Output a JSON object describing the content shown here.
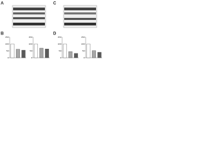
{
  "panels": [
    "A",
    "B",
    "C",
    "D"
  ],
  "chart_data": [
    {
      "type": "bar",
      "categories": [
        null,
        null,
        null
      ],
      "values": [
        100,
        62,
        55
      ],
      "colors": [
        "#ffffff",
        "#a6a6a6",
        "#595959"
      ],
      "ylim": [
        0,
        150
      ],
      "yticks": [
        0,
        50,
        100,
        150
      ]
    },
    {
      "type": "bar",
      "categories": [
        null,
        null,
        null
      ],
      "values": [
        100,
        70,
        64
      ],
      "colors": [
        "#ffffff",
        "#a6a6a6",
        "#595959"
      ],
      "ylim": [
        0,
        150
      ],
      "yticks": [
        0,
        50,
        100,
        150
      ]
    },
    {
      "type": "bar",
      "categories": [
        null,
        null,
        null
      ],
      "values": [
        100,
        45,
        32
      ],
      "colors": [
        "#ffffff",
        "#a6a6a6",
        "#595959"
      ],
      "ylim": [
        0,
        150
      ],
      "yticks": [
        0,
        50,
        100,
        150
      ]
    },
    {
      "type": "bar",
      "categories": [
        null,
        null,
        null
      ],
      "values": [
        100,
        52,
        40
      ],
      "colors": [
        "#ffffff",
        "#a6a6a6",
        "#595959"
      ],
      "ylim": [
        0,
        150
      ],
      "yticks": [
        0,
        50,
        100,
        150
      ]
    }
  ]
}
